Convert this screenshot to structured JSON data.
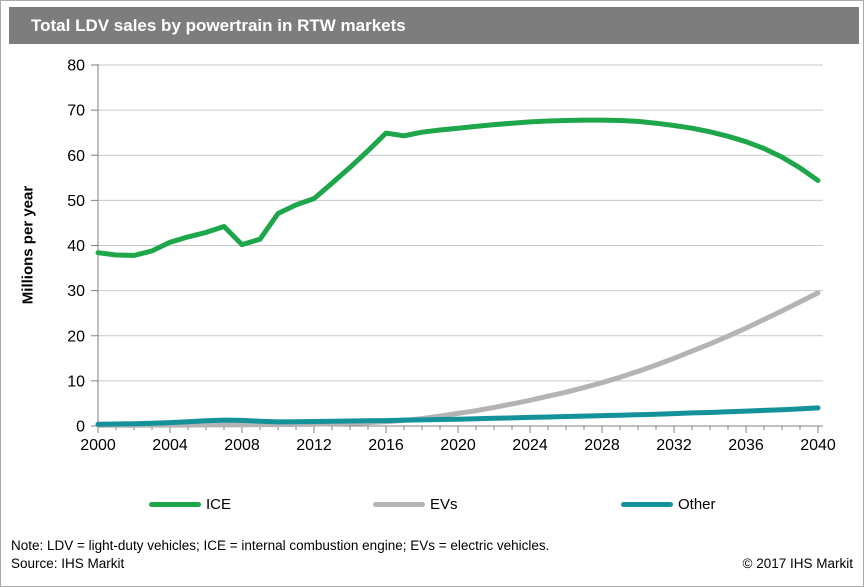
{
  "header": {
    "title": "Total LDV sales by powertrain in RTW markets",
    "bar_color": "#7d7d7d"
  },
  "footer": {
    "note": "Note: LDV = light-duty vehicles; ICE = internal combustion engine; EVs = electric vehicles.",
    "source": "Source: IHS Markit",
    "copyright": "© 2017 IHS Markit"
  },
  "colors": {
    "grid": "#c9c9c9",
    "axis": "#808080",
    "ice": "#1ea64b",
    "evs": "#b4b4b6",
    "other": "#13929a"
  },
  "chart_data": {
    "type": "line",
    "title": "Total LDV sales by powertrain in RTW markets",
    "xlabel": "",
    "ylabel": "Millions per year",
    "xlim": [
      2000,
      2040
    ],
    "ylim": [
      0,
      80
    ],
    "yticks": [
      0,
      10,
      20,
      30,
      40,
      50,
      60,
      70,
      80
    ],
    "xticks_major": [
      2000,
      2004,
      2008,
      2012,
      2016,
      2020,
      2024,
      2028,
      2032,
      2036,
      2040
    ],
    "xticks_minor_step": 1,
    "grid": "horizontal",
    "legend_position": "bottom",
    "x": [
      2000,
      2001,
      2002,
      2003,
      2004,
      2005,
      2006,
      2007,
      2008,
      2009,
      2010,
      2011,
      2012,
      2013,
      2014,
      2015,
      2016,
      2017,
      2018,
      2019,
      2020,
      2021,
      2022,
      2023,
      2024,
      2025,
      2026,
      2027,
      2028,
      2029,
      2030,
      2031,
      2032,
      2033,
      2034,
      2035,
      2036,
      2037,
      2038,
      2039,
      2040
    ],
    "series": [
      {
        "name": "ICE",
        "color": "#1ea64b",
        "values": [
          38.4,
          37.9,
          37.8,
          38.8,
          40.7,
          41.9,
          42.9,
          44.2,
          40.2,
          41.4,
          47.1,
          49.0,
          50.4,
          53.8,
          57.3,
          61.0,
          64.9,
          64.3,
          65.1,
          65.6,
          66.0,
          66.4,
          66.8,
          67.1,
          67.4,
          67.6,
          67.7,
          67.8,
          67.8,
          67.7,
          67.5,
          67.1,
          66.6,
          66.0,
          65.2,
          64.2,
          63.0,
          61.5,
          59.6,
          57.2,
          54.4
        ]
      },
      {
        "name": "EVs",
        "color": "#b4b4b6",
        "values": [
          0.15,
          0.15,
          0.15,
          0.2,
          0.2,
          0.2,
          0.25,
          0.25,
          0.25,
          0.3,
          0.3,
          0.35,
          0.4,
          0.5,
          0.6,
          0.75,
          0.95,
          1.25,
          1.65,
          2.2,
          2.8,
          3.4,
          4.1,
          4.9,
          5.7,
          6.6,
          7.5,
          8.5,
          9.6,
          10.8,
          12.1,
          13.5,
          15.0,
          16.6,
          18.2,
          19.9,
          21.7,
          23.6,
          25.5,
          27.5,
          29.5
        ]
      },
      {
        "name": "Other",
        "color": "#13929a",
        "values": [
          0.4,
          0.45,
          0.5,
          0.6,
          0.75,
          0.95,
          1.15,
          1.3,
          1.25,
          1.05,
          0.9,
          0.95,
          1.0,
          1.05,
          1.1,
          1.15,
          1.2,
          1.3,
          1.35,
          1.45,
          1.5,
          1.6,
          1.7,
          1.8,
          1.9,
          2.0,
          2.1,
          2.2,
          2.3,
          2.4,
          2.5,
          2.6,
          2.75,
          2.9,
          3.0,
          3.15,
          3.3,
          3.45,
          3.6,
          3.8,
          4.0
        ]
      }
    ]
  }
}
